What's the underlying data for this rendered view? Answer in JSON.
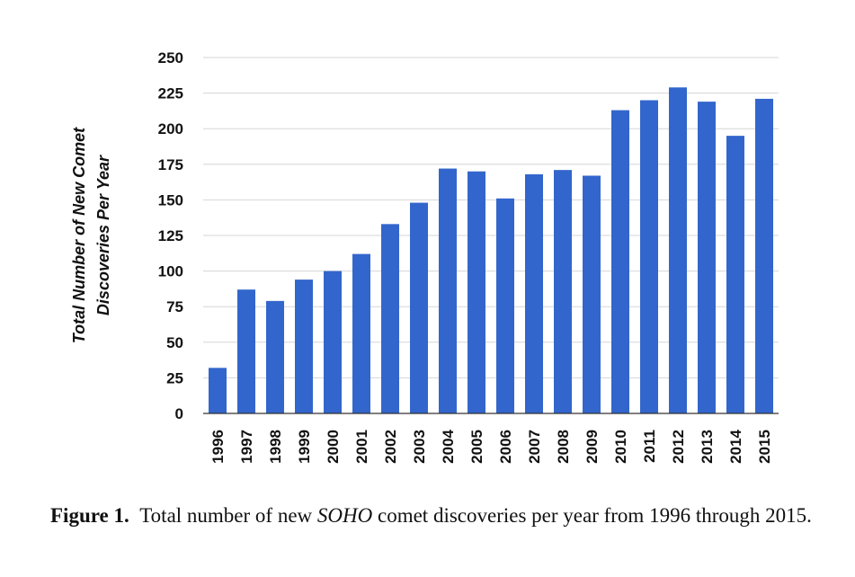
{
  "chart_data": {
    "type": "bar",
    "categories": [
      "1996",
      "1997",
      "1998",
      "1999",
      "2000",
      "2001",
      "2002",
      "2003",
      "2004",
      "2005",
      "2006",
      "2007",
      "2008",
      "2009",
      "2010",
      "2011",
      "2012",
      "2013",
      "2014",
      "2015"
    ],
    "values": [
      32,
      87,
      79,
      94,
      100,
      112,
      133,
      148,
      172,
      170,
      151,
      168,
      171,
      167,
      213,
      220,
      229,
      219,
      195,
      221
    ],
    "ylabel_line1": "Total Number of New Comet",
    "ylabel_line2": "Discoveries Per Year",
    "ylim": [
      0,
      250
    ],
    "yticks": [
      "0",
      "25",
      "50",
      "75",
      "100",
      "125",
      "150",
      "175",
      "200",
      "225",
      "250"
    ],
    "grid": true,
    "bar_color": "#3366cc"
  },
  "caption": {
    "label": "Figure 1.",
    "text_before": "Total number of new ",
    "emph": "SOHO",
    "text_after": " comet discoveries per year from 1996 through 2015."
  }
}
